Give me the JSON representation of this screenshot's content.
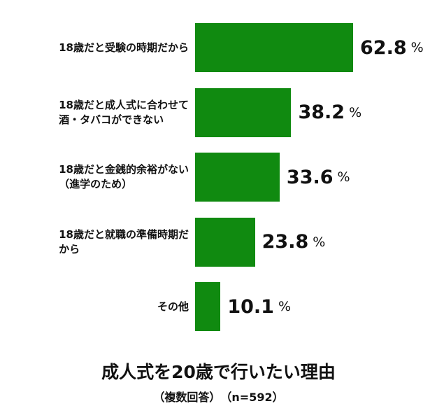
{
  "chart_data": {
    "type": "bar",
    "orientation": "horizontal",
    "title": "成人式を20歳で行いたい理由",
    "subtitle": "（複数回答）　（n=592）",
    "categories": [
      "18歳だと受験の時期だから",
      "18歳だと成人式に合わせて\n酒・タバコができない",
      "18歳だと金銭的余裕がない\n（進学のため）",
      "18歳だと就職の準備時期だ\nから",
      "その他"
    ],
    "values": [
      62.8,
      38.2,
      33.6,
      23.8,
      10.1
    ],
    "unit": "%",
    "color": "#108a10"
  }
}
